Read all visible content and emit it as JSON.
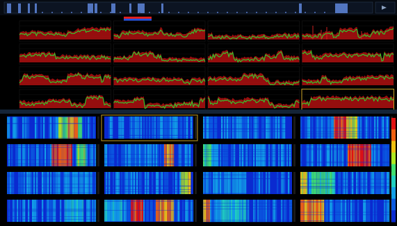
{
  "window": {
    "timeline_marker_label": "",
    "panel_divider_label": ""
  },
  "colors": {
    "background": "#000000",
    "timeline_blue": "#5a7fd0",
    "marker_red": "#e02020",
    "marker_blue": "#2050e0",
    "trace_red": "#b01010",
    "trace_green": "#2ed02e",
    "selection_outline": "#c8a020",
    "waterfall_base": "#0a2ad0",
    "splitter": "#142437"
  },
  "timeline": {
    "type": "activity-bar",
    "icon": "scroll-arrow-icon"
  },
  "spectrum_grid": {
    "rows": 4,
    "cols": 4,
    "selected_cell": [
      3,
      3
    ]
  },
  "waterfall_grid": {
    "rows": 4,
    "cols": 4,
    "selected_cell": [
      0,
      1
    ],
    "colorbar": true
  }
}
